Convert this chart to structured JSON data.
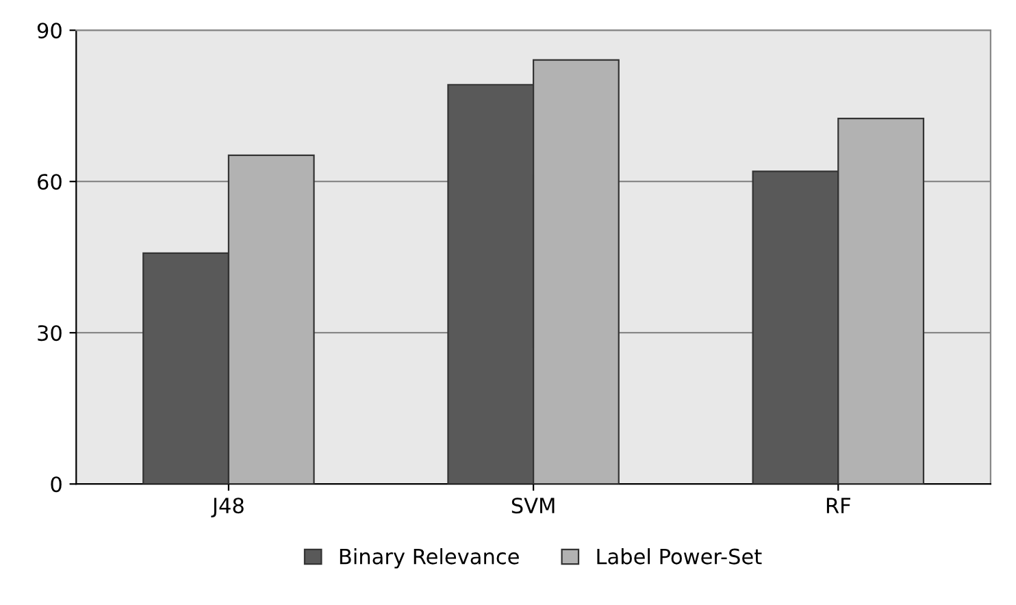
{
  "chart_data": {
    "type": "bar",
    "categories": [
      "J48",
      "SVM",
      "RF"
    ],
    "series": [
      {
        "name": "Binary Relevance",
        "color": "#595959",
        "values": [
          45.8,
          79.2,
          62.0
        ]
      },
      {
        "name": "Label Power-Set",
        "color": "#b2b2b2",
        "values": [
          65.2,
          84.1,
          72.5
        ]
      }
    ],
    "ylim": [
      0,
      90
    ],
    "yticks": [
      0,
      30,
      60,
      90
    ],
    "grid": "y",
    "legend": "bottom"
  }
}
